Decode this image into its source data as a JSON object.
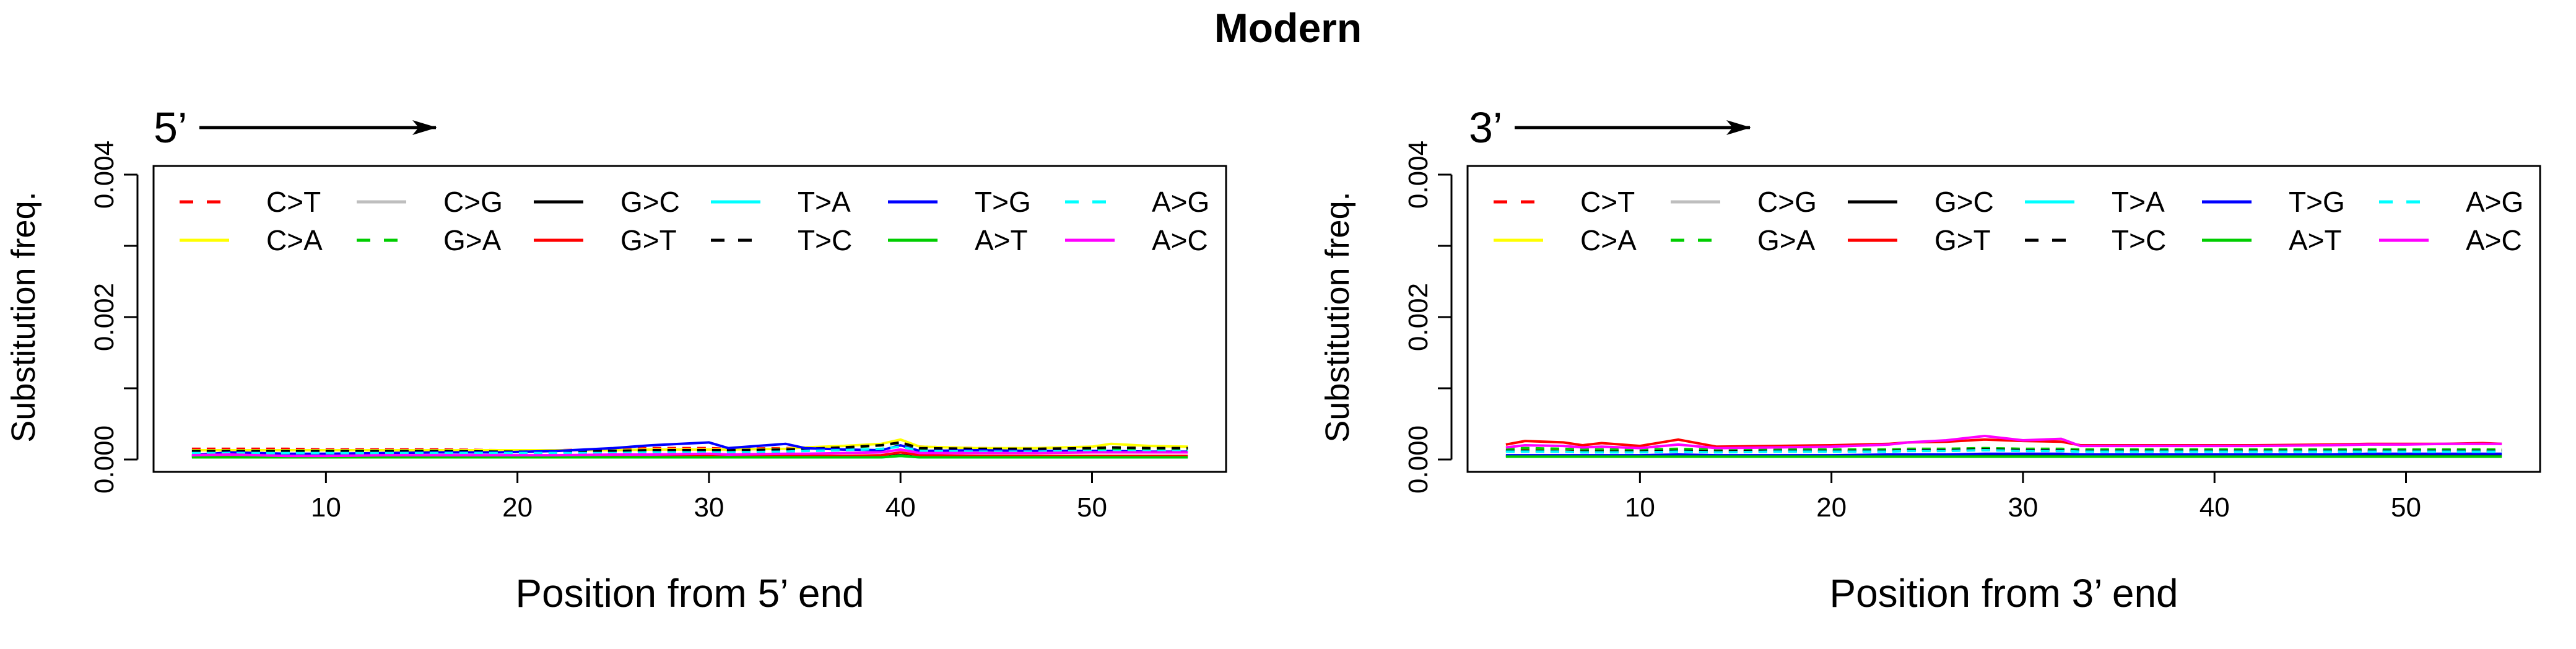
{
  "figure": {
    "title": "Modern"
  },
  "legend": {
    "entries": [
      {
        "label": "C>T",
        "color": "#ff0000",
        "dash": true
      },
      {
        "label": "C>G",
        "color": "#bebebe",
        "dash": false
      },
      {
        "label": "G>C",
        "color": "#000000",
        "dash": false
      },
      {
        "label": "T>A",
        "color": "#00ffff",
        "dash": false
      },
      {
        "label": "T>G",
        "color": "#0000ff",
        "dash": false
      },
      {
        "label": "A>G",
        "color": "#00ffff",
        "dash": true
      },
      {
        "label": "C>A",
        "color": "#ffff00",
        "dash": false
      },
      {
        "label": "G>A",
        "color": "#00cd00",
        "dash": true
      },
      {
        "label": "G>T",
        "color": "#ff0000",
        "dash": false
      },
      {
        "label": "T>C",
        "color": "#000000",
        "dash": true
      },
      {
        "label": "A>T",
        "color": "#00cd00",
        "dash": false
      },
      {
        "label": "A>C",
        "color": "#ff00ff",
        "dash": false
      }
    ]
  },
  "chart_data": [
    {
      "type": "line",
      "panel_label": "5’",
      "xlabel": "Position from 5’ end",
      "ylabel": "Substitution freq.",
      "xlim": [
        1,
        57
      ],
      "ylim": [
        0,
        0.004
      ],
      "xticks": [
        10,
        20,
        30,
        40,
        50
      ],
      "yticks": [
        "0.000",
        "0.002",
        "0.004"
      ],
      "ytick_values": [
        0,
        0.001,
        0.002,
        0.003,
        0.004
      ],
      "x": [
        3,
        5,
        8,
        10,
        13,
        16,
        19,
        22,
        25,
        27,
        30,
        31,
        34,
        35,
        37,
        39,
        40,
        41,
        44,
        47,
        50,
        51,
        53,
        55
      ],
      "series": [
        {
          "name": "C>T",
          "values": [
            0.00015,
            0.00015,
            0.00015,
            0.00014,
            0.00014,
            0.00014,
            0.00013,
            0.00013,
            0.00014,
            0.00016,
            0.00016,
            0.00015,
            0.00016,
            0.00016,
            0.00017,
            0.0002,
            0.00025,
            0.00018,
            0.00016,
            0.00015,
            0.00016,
            0.00017,
            0.00016,
            0.00016
          ]
        },
        {
          "name": "C>A",
          "values": [
            0.00013,
            0.00013,
            0.00013,
            0.00013,
            0.00013,
            0.00013,
            0.00013,
            0.00013,
            0.00013,
            0.00014,
            0.00014,
            0.00014,
            0.00015,
            0.00017,
            0.00019,
            0.00022,
            0.00028,
            0.00018,
            0.00016,
            0.00016,
            0.00018,
            0.00022,
            0.00019,
            0.00018
          ]
        },
        {
          "name": "C>G",
          "values": [
            4e-05,
            4e-05,
            4e-05,
            4e-05,
            4e-05,
            4e-05,
            4e-05,
            4e-05,
            4e-05,
            4e-05,
            4e-05,
            4e-05,
            4e-05,
            4e-05,
            4e-05,
            4e-05,
            6e-05,
            4e-05,
            4e-05,
            4e-05,
            4e-05,
            4e-05,
            4e-05,
            4e-05
          ]
        },
        {
          "name": "G>A",
          "values": [
            0.00011,
            0.00012,
            0.00011,
            0.00011,
            0.00011,
            0.00011,
            0.00011,
            0.00011,
            0.00012,
            0.00012,
            0.00012,
            0.00012,
            0.00013,
            0.00014,
            0.00016,
            0.0002,
            0.00023,
            0.00015,
            0.00014,
            0.00013,
            0.00013,
            0.00014,
            0.00013,
            0.00013
          ]
        },
        {
          "name": "G>C",
          "values": [
            4e-05,
            4e-05,
            4e-05,
            4e-05,
            4e-05,
            4e-05,
            4e-05,
            4e-05,
            4e-05,
            4e-05,
            4e-05,
            4e-05,
            4e-05,
            4e-05,
            4e-05,
            4e-05,
            6e-05,
            4e-05,
            4e-05,
            4e-05,
            4e-05,
            4e-05,
            4e-05,
            4e-05
          ]
        },
        {
          "name": "G>T",
          "values": [
            5e-05,
            5e-05,
            5e-05,
            5e-05,
            5e-05,
            5e-05,
            5e-05,
            5e-05,
            5e-05,
            5e-05,
            5e-05,
            5e-05,
            5e-05,
            5e-05,
            5e-05,
            6e-05,
            0.0001,
            6e-05,
            5e-05,
            5e-05,
            5e-05,
            5e-05,
            5e-05,
            5e-05
          ]
        },
        {
          "name": "T>A",
          "values": [
            3e-05,
            3e-05,
            3e-05,
            3e-05,
            3e-05,
            3e-05,
            3e-05,
            3e-05,
            3e-05,
            3e-05,
            3e-05,
            3e-05,
            3e-05,
            3e-05,
            3e-05,
            3e-05,
            5e-05,
            3e-05,
            3e-05,
            3e-05,
            3e-05,
            3e-05,
            3e-05,
            3e-05
          ]
        },
        {
          "name": "T>C",
          "values": [
            0.00012,
            0.00012,
            0.00012,
            0.00012,
            0.00012,
            0.00012,
            0.00011,
            0.00011,
            0.00012,
            0.00013,
            0.00013,
            0.00013,
            0.00014,
            0.00015,
            0.00017,
            0.0002,
            0.00024,
            0.00016,
            0.00015,
            0.00015,
            0.00016,
            0.00017,
            0.00016,
            0.00016
          ]
        },
        {
          "name": "T>G",
          "values": [
            6e-05,
            0.0001,
            8e-05,
            8e-05,
            9e-05,
            0.0001,
            0.0001,
            0.00012,
            0.00016,
            0.0002,
            0.00024,
            0.00016,
            0.00022,
            0.00016,
            0.00014,
            0.00013,
            0.0002,
            0.00012,
            0.00013,
            0.00012,
            0.00012,
            0.00012,
            0.00011,
            0.00011
          ]
        },
        {
          "name": "A>T",
          "values": [
            3e-05,
            3e-05,
            3e-05,
            3e-05,
            3e-05,
            3e-05,
            3e-05,
            3e-05,
            3e-05,
            3e-05,
            3e-05,
            3e-05,
            3e-05,
            3e-05,
            3e-05,
            3e-05,
            5e-05,
            3e-05,
            3e-05,
            3e-05,
            3e-05,
            3e-05,
            3e-05,
            3e-05
          ]
        },
        {
          "name": "A>G",
          "values": [
            9e-05,
            9e-05,
            9e-05,
            9e-05,
            9e-05,
            9e-05,
            9e-05,
            9e-05,
            9e-05,
            0.0001,
            0.0001,
            0.0001,
            0.00011,
            0.00012,
            0.00013,
            0.00015,
            0.00018,
            0.00012,
            0.00011,
            0.00011,
            0.00012,
            0.00012,
            0.00012,
            0.00012
          ]
        },
        {
          "name": "A>C",
          "values": [
            6e-05,
            7e-05,
            5e-05,
            5e-05,
            6e-05,
            6e-05,
            6e-05,
            6e-05,
            7e-05,
            7e-05,
            8e-05,
            7e-05,
            8e-05,
            8e-05,
            9e-05,
            0.0001,
            0.00014,
            9e-05,
            9e-05,
            9e-05,
            0.0001,
            0.0001,
            0.0001,
            0.0001
          ]
        }
      ]
    },
    {
      "type": "line",
      "panel_label": "3’",
      "xlabel": "Position from 3’ end",
      "ylabel": "Substitution freq.",
      "xlim": [
        1,
        57
      ],
      "ylim": [
        0,
        0.004
      ],
      "xticks": [
        10,
        20,
        30,
        40,
        50
      ],
      "yticks": [
        "0.000",
        "0.002",
        "0.004"
      ],
      "ytick_values": [
        0,
        0.001,
        0.002,
        0.003,
        0.004
      ],
      "x": [
        3,
        4,
        6,
        7,
        8,
        10,
        12,
        14,
        17,
        20,
        23,
        24,
        26,
        28,
        30,
        32,
        33,
        36,
        39,
        42,
        46,
        48,
        50,
        52,
        54,
        55
      ],
      "series": [
        {
          "name": "C>T",
          "values": [
            0.00013,
            0.00014,
            0.00014,
            0.00013,
            0.00013,
            0.00013,
            0.00014,
            0.00013,
            0.00013,
            0.00013,
            0.00013,
            0.00014,
            0.00014,
            0.00015,
            0.00014,
            0.00014,
            0.00013,
            0.00013,
            0.00013,
            0.00013,
            0.00013,
            0.00013,
            0.00013,
            0.00013,
            0.00013,
            0.00013
          ]
        },
        {
          "name": "C>A",
          "values": [
            4e-05,
            4e-05,
            4e-05,
            4e-05,
            4e-05,
            4e-05,
            4e-05,
            4e-05,
            4e-05,
            4e-05,
            4e-05,
            4e-05,
            4e-05,
            4e-05,
            4e-05,
            4e-05,
            4e-05,
            4e-05,
            4e-05,
            4e-05,
            4e-05,
            4e-05,
            4e-05,
            4e-05,
            4e-05,
            4e-05
          ]
        },
        {
          "name": "C>G",
          "values": [
            5e-05,
            5e-05,
            5e-05,
            5e-05,
            5e-05,
            5e-05,
            5e-05,
            5e-05,
            5e-05,
            5e-05,
            5e-05,
            5e-05,
            5e-05,
            5e-05,
            5e-05,
            5e-05,
            5e-05,
            5e-05,
            5e-05,
            5e-05,
            5e-05,
            5e-05,
            5e-05,
            5e-05,
            5e-05,
            5e-05
          ]
        },
        {
          "name": "G>A",
          "values": [
            0.00015,
            0.00016,
            0.00015,
            0.00014,
            0.00014,
            0.00014,
            0.00015,
            0.00014,
            0.00014,
            0.00014,
            0.00014,
            0.00015,
            0.00015,
            0.00016,
            0.00015,
            0.00015,
            0.00014,
            0.00014,
            0.00014,
            0.00014,
            0.00014,
            0.00014,
            0.00014,
            0.00014,
            0.00014,
            0.00014
          ]
        },
        {
          "name": "G>C",
          "values": [
            5e-05,
            5e-05,
            5e-05,
            5e-05,
            5e-05,
            5e-05,
            5e-05,
            5e-05,
            5e-05,
            5e-05,
            5e-05,
            5e-05,
            5e-05,
            5e-05,
            5e-05,
            5e-05,
            5e-05,
            5e-05,
            5e-05,
            5e-05,
            5e-05,
            5e-05,
            5e-05,
            5e-05,
            5e-05,
            5e-05
          ]
        },
        {
          "name": "G>T",
          "values": [
            0.00021,
            0.00026,
            0.00024,
            0.0002,
            0.00023,
            0.00019,
            0.00028,
            0.00018,
            0.00019,
            0.0002,
            0.00022,
            0.00024,
            0.00025,
            0.00028,
            0.00026,
            0.00025,
            0.0002,
            0.0002,
            0.0002,
            0.0002,
            0.00021,
            0.00022,
            0.00022,
            0.00022,
            0.00023,
            0.00022
          ]
        },
        {
          "name": "T>A",
          "values": [
            4e-05,
            4e-05,
            4e-05,
            4e-05,
            4e-05,
            4e-05,
            4e-05,
            4e-05,
            4e-05,
            4e-05,
            4e-05,
            4e-05,
            4e-05,
            4e-05,
            4e-05,
            4e-05,
            4e-05,
            4e-05,
            4e-05,
            4e-05,
            4e-05,
            4e-05,
            4e-05,
            4e-05,
            4e-05,
            4e-05
          ]
        },
        {
          "name": "T>C",
          "values": [
            0.00012,
            0.00012,
            0.00011,
            0.00011,
            0.00011,
            0.00011,
            0.00012,
            0.00011,
            0.00012,
            0.00012,
            0.00012,
            0.00013,
            0.00013,
            0.00014,
            0.00013,
            0.00013,
            0.00012,
            0.00012,
            0.00012,
            0.00012,
            0.00012,
            0.00012,
            0.00012,
            0.00012,
            0.00012,
            0.00012
          ]
        },
        {
          "name": "T>G",
          "values": [
            6e-05,
            6e-05,
            6e-05,
            6e-05,
            6e-05,
            6e-05,
            7e-05,
            6e-05,
            6e-05,
            6e-05,
            7e-05,
            7e-05,
            7e-05,
            8e-05,
            8e-05,
            8e-05,
            7e-05,
            7e-05,
            7e-05,
            7e-05,
            7e-05,
            8e-05,
            8e-05,
            8e-05,
            8e-05,
            8e-05
          ]
        },
        {
          "name": "A>T",
          "values": [
            4e-05,
            4e-05,
            4e-05,
            4e-05,
            4e-05,
            4e-05,
            4e-05,
            4e-05,
            4e-05,
            4e-05,
            4e-05,
            4e-05,
            4e-05,
            4e-05,
            4e-05,
            4e-05,
            4e-05,
            4e-05,
            4e-05,
            4e-05,
            4e-05,
            4e-05,
            4e-05,
            4e-05,
            4e-05,
            4e-05
          ]
        },
        {
          "name": "A>G",
          "values": [
            0.00011,
            0.00011,
            0.00011,
            0.0001,
            0.0001,
            0.0001,
            0.00011,
            0.0001,
            0.00011,
            0.00011,
            0.00011,
            0.00012,
            0.00012,
            0.00013,
            0.00012,
            0.00012,
            0.00011,
            0.00011,
            0.00011,
            0.00011,
            0.00011,
            0.00011,
            0.00011,
            0.00011,
            0.00011,
            0.00011
          ]
        },
        {
          "name": "A>C",
          "values": [
            0.00017,
            0.0002,
            0.00019,
            0.00017,
            0.00018,
            0.00016,
            0.00021,
            0.00016,
            0.00017,
            0.00018,
            0.00021,
            0.00024,
            0.00027,
            0.00033,
            0.00027,
            0.00029,
            0.00019,
            0.00019,
            0.00019,
            0.00019,
            0.0002,
            0.00021,
            0.00021,
            0.00022,
            0.00022,
            0.00022
          ]
        }
      ]
    }
  ]
}
